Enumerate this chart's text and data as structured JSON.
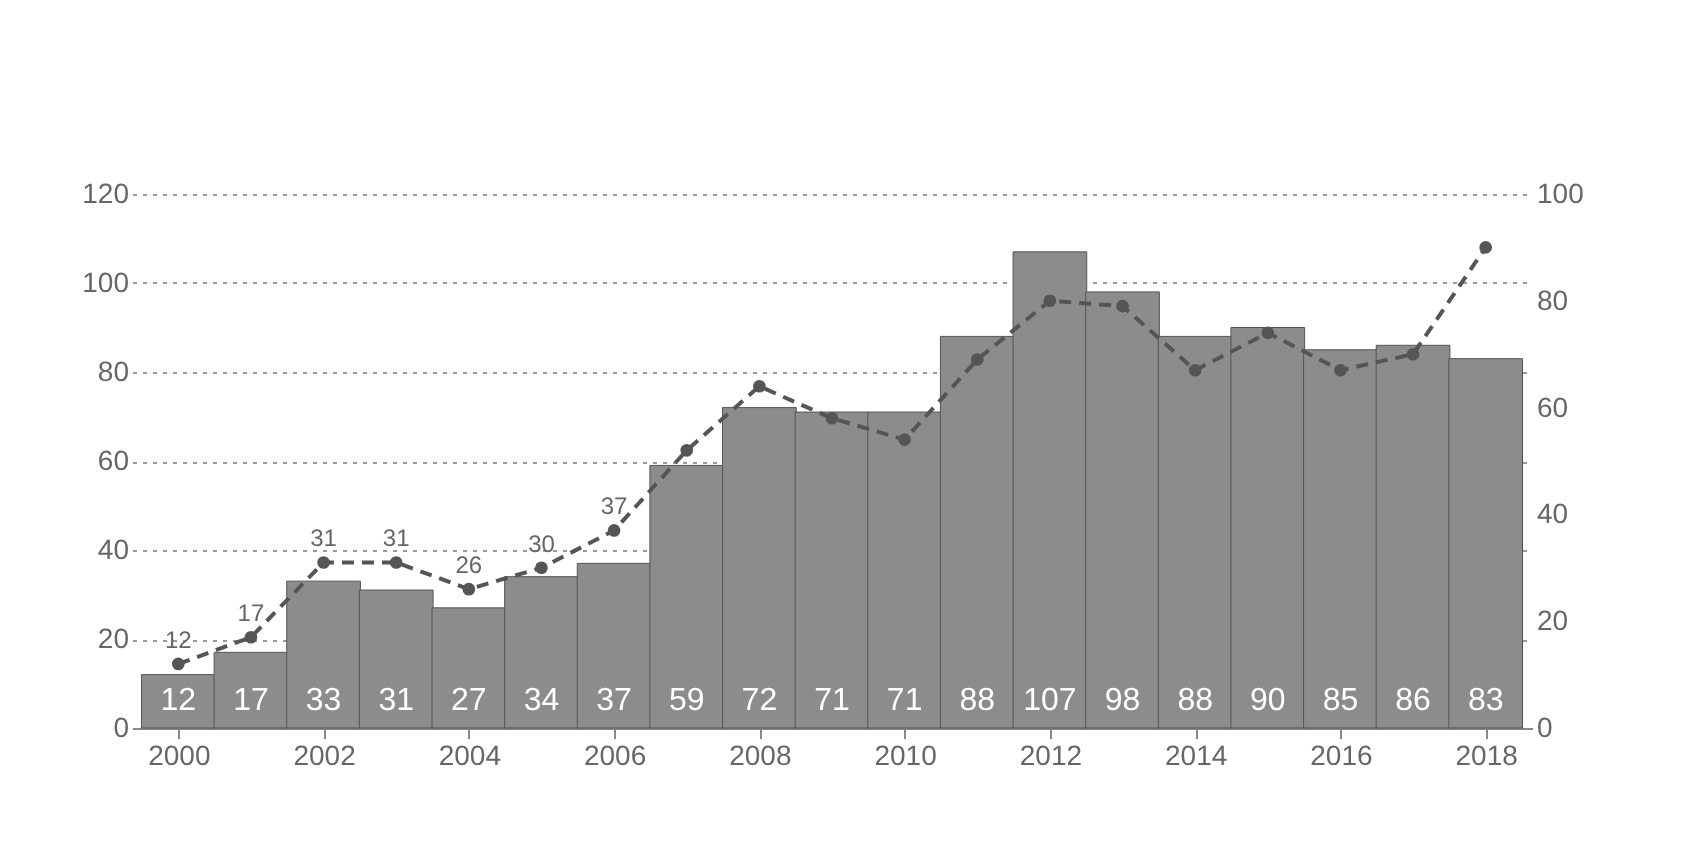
{
  "chart_data": {
    "type": "bar",
    "x": [
      2000,
      2001,
      2002,
      2003,
      2004,
      2005,
      2006,
      2007,
      2008,
      2009,
      2010,
      2011,
      2012,
      2013,
      2014,
      2015,
      2016,
      2017,
      2018
    ],
    "xlim": [
      1999.5,
      2018.5
    ],
    "xticks": [
      2000,
      2002,
      2004,
      2006,
      2008,
      2010,
      2012,
      2014,
      2016,
      2018
    ],
    "ylim": [
      0,
      120
    ],
    "yticks": [
      0,
      20,
      40,
      60,
      80,
      100,
      120
    ],
    "y2lim": [
      0,
      100
    ],
    "y2ticks": [
      0,
      20,
      40,
      60,
      80,
      100
    ],
    "grid": "y",
    "series": [
      {
        "color": "#8c8c8c",
        "values": [
          12,
          17,
          33,
          31,
          27,
          34,
          37,
          59,
          72,
          71,
          71,
          88,
          107,
          98,
          88,
          90,
          85,
          86,
          83
        ],
        "data_labels": true
      },
      {
        "type": "line",
        "axis": "y2",
        "color": "#555555",
        "marker": "circle",
        "line_style": "dashed",
        "values": [
          12,
          17,
          31,
          31,
          26,
          30,
          37,
          52,
          64,
          58,
          54,
          69,
          80,
          79,
          67,
          74,
          67,
          70,
          90
        ],
        "value_labels": [
          "12",
          "17",
          "31",
          "31",
          "26",
          "30",
          "37",
          null,
          null,
          null,
          null,
          null,
          null,
          null,
          null,
          null,
          null,
          null,
          null
        ]
      }
    ]
  }
}
